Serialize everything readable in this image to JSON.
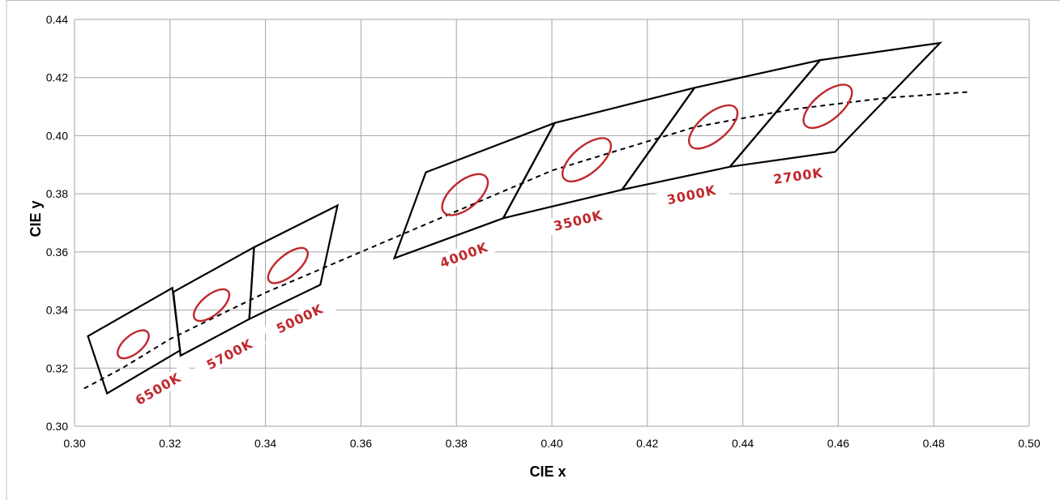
{
  "chart_data": {
    "type": "scatter",
    "title": "",
    "xlabel": "CIE x",
    "ylabel": "CIE y",
    "xlim": [
      0.3,
      0.5
    ],
    "ylim": [
      0.3,
      0.44
    ],
    "x_ticks": [
      "0.30",
      "0.32",
      "0.34",
      "0.36",
      "0.38",
      "0.40",
      "0.42",
      "0.44",
      "0.46",
      "0.48",
      "0.50"
    ],
    "y_ticks": [
      "0.30",
      "0.32",
      "0.34",
      "0.36",
      "0.38",
      "0.40",
      "0.42",
      "0.44"
    ],
    "grid": true,
    "planckian_locus": [
      [
        0.302,
        0.313
      ],
      [
        0.31,
        0.32
      ],
      [
        0.32,
        0.33
      ],
      [
        0.33,
        0.338
      ],
      [
        0.34,
        0.346
      ],
      [
        0.35,
        0.353
      ],
      [
        0.36,
        0.36
      ],
      [
        0.37,
        0.367
      ],
      [
        0.38,
        0.374
      ],
      [
        0.39,
        0.381
      ],
      [
        0.4,
        0.388
      ],
      [
        0.41,
        0.393
      ],
      [
        0.42,
        0.398
      ],
      [
        0.43,
        0.403
      ],
      [
        0.44,
        0.406
      ],
      [
        0.45,
        0.409
      ],
      [
        0.46,
        0.411
      ],
      [
        0.47,
        0.413
      ],
      [
        0.487,
        0.415
      ]
    ],
    "bins": [
      {
        "label": "6500K",
        "quad": [
          [
            0.3028,
            0.331
          ],
          [
            0.3205,
            0.3476
          ],
          [
            0.3221,
            0.3261
          ],
          [
            0.3068,
            0.3113
          ]
        ],
        "ellipse": {
          "cx": 0.3123,
          "cy": 0.3282,
          "rx": 0.0037,
          "ry": 0.0048,
          "angle": -40
        }
      },
      {
        "label": "5700K",
        "quad": [
          [
            0.3207,
            0.3462
          ],
          [
            0.3376,
            0.3616
          ],
          [
            0.3366,
            0.3369
          ],
          [
            0.3222,
            0.3243
          ]
        ],
        "ellipse": {
          "cx": 0.3287,
          "cy": 0.3417,
          "rx": 0.004,
          "ry": 0.0055,
          "angle": -40
        }
      },
      {
        "label": "5000K",
        "quad": [
          [
            0.3376,
            0.3616
          ],
          [
            0.3551,
            0.376
          ],
          [
            0.3515,
            0.3487
          ],
          [
            0.3366,
            0.3369
          ]
        ],
        "ellipse": {
          "cx": 0.3447,
          "cy": 0.3553,
          "rx": 0.0042,
          "ry": 0.0062,
          "angle": -40
        }
      },
      {
        "label": "4000K",
        "quad": [
          [
            0.3736,
            0.3874
          ],
          [
            0.4006,
            0.4044
          ],
          [
            0.3898,
            0.3716
          ],
          [
            0.367,
            0.3578
          ]
        ],
        "ellipse": {
          "cx": 0.3818,
          "cy": 0.3797,
          "rx": 0.0055,
          "ry": 0.007,
          "angle": -40
        }
      },
      {
        "label": "3500K",
        "quad": [
          [
            0.4006,
            0.4044
          ],
          [
            0.4299,
            0.4165
          ],
          [
            0.4147,
            0.3814
          ],
          [
            0.3898,
            0.3716
          ]
        ],
        "ellipse": {
          "cx": 0.4073,
          "cy": 0.3917,
          "rx": 0.0055,
          "ry": 0.0075,
          "angle": -40
        }
      },
      {
        "label": "3000K",
        "quad": [
          [
            0.4299,
            0.4165
          ],
          [
            0.4562,
            0.426
          ],
          [
            0.4373,
            0.3893
          ],
          [
            0.4147,
            0.3814
          ]
        ],
        "ellipse": {
          "cx": 0.4338,
          "cy": 0.403,
          "rx": 0.0055,
          "ry": 0.0075,
          "angle": -40
        }
      },
      {
        "label": "2700K",
        "quad": [
          [
            0.4562,
            0.426
          ],
          [
            0.4813,
            0.4319
          ],
          [
            0.4593,
            0.3944
          ],
          [
            0.4373,
            0.3893
          ]
        ],
        "ellipse": {
          "cx": 0.4578,
          "cy": 0.4101,
          "rx": 0.0055,
          "ry": 0.0075,
          "angle": -40
        }
      }
    ]
  }
}
